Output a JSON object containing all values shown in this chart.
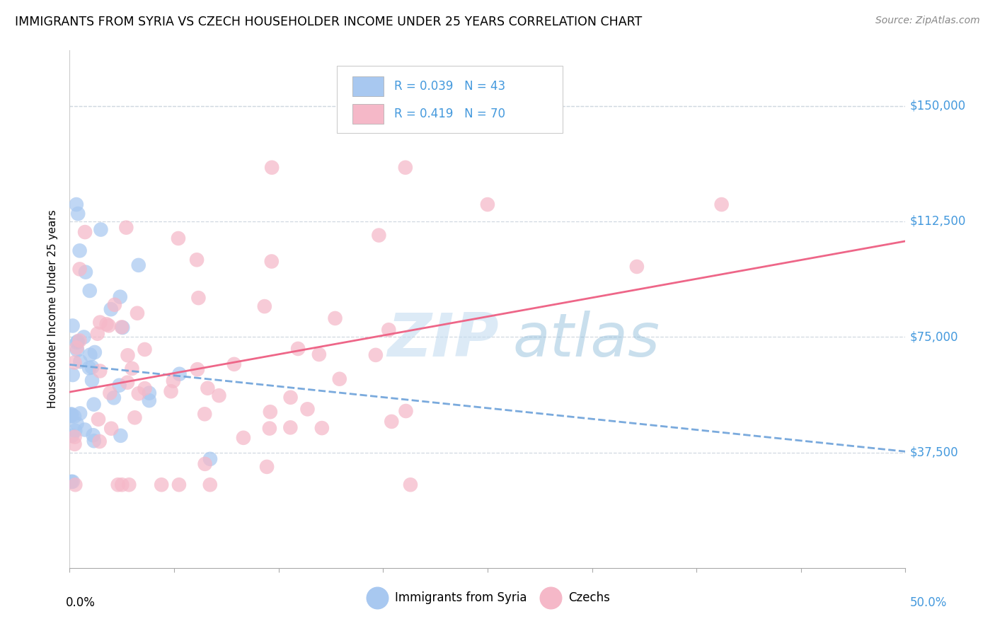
{
  "title": "IMMIGRANTS FROM SYRIA VS CZECH HOUSEHOLDER INCOME UNDER 25 YEARS CORRELATION CHART",
  "source": "Source: ZipAtlas.com",
  "ylabel": "Householder Income Under 25 years",
  "ytick_labels": [
    "$37,500",
    "$75,000",
    "$112,500",
    "$150,000"
  ],
  "ytick_values": [
    37500,
    75000,
    112500,
    150000
  ],
  "ylim": [
    0,
    168000
  ],
  "xlim": [
    0.0,
    0.5
  ],
  "color_syria": "#a8c8f0",
  "color_czech": "#f5b8c8",
  "line_syria_color": "#7aaadd",
  "line_czech_color": "#ee6688",
  "right_label_color": "#4499dd",
  "grid_color": "#d0d8e0",
  "legend_syria_text": "R = 0.039   N = 43",
  "legend_czech_text": "R = 0.419   N = 70",
  "legend1_label": "Immigrants from Syria",
  "legend2_label": "Czechs",
  "title_fontsize": 12.5,
  "source_fontsize": 10,
  "tick_fontsize": 12,
  "watermark_color": "#c8ddf0"
}
